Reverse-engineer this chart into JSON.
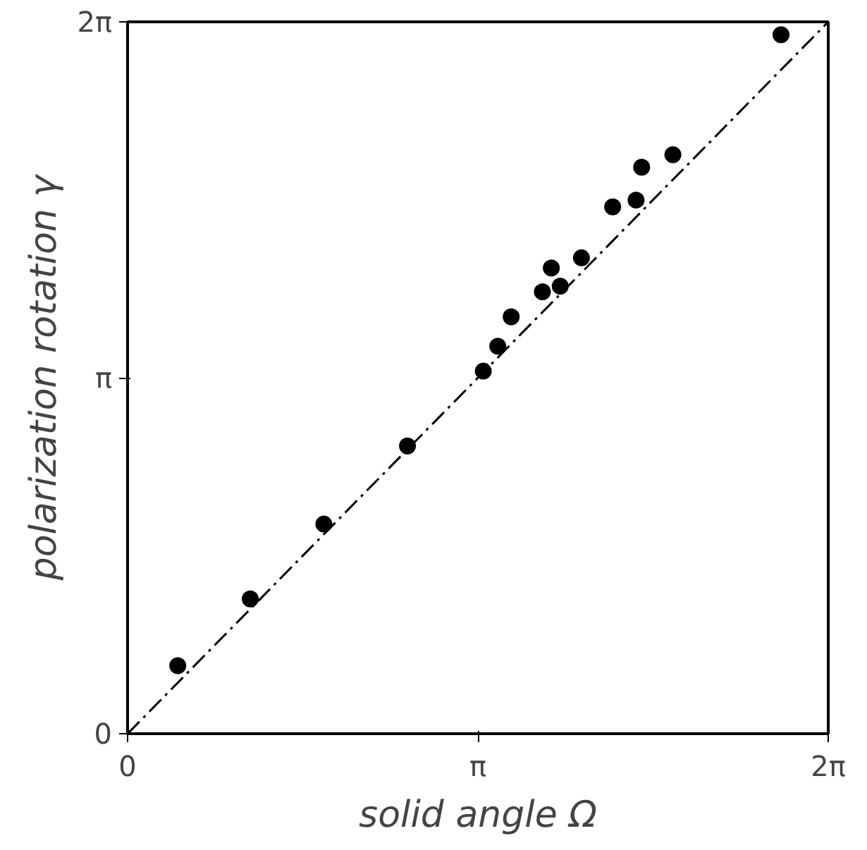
{
  "chart_data": {
    "type": "scatter",
    "xlabel": "solid angle Ω",
    "ylabel": "polarization rotation γ",
    "xlim": [
      0,
      6.2832
    ],
    "ylim": [
      0,
      6.2832
    ],
    "xticks": [
      0,
      {
        "value": 3.1416,
        "label": "π"
      },
      {
        "value": 6.2832,
        "label": "2π"
      }
    ],
    "yticks": [
      0,
      {
        "value": 3.1416,
        "label": "π"
      },
      {
        "value": 6.2832,
        "label": "2π"
      }
    ],
    "grid": false,
    "marker": "circle",
    "series": [
      {
        "color": "#000000",
        "x": [
          0.45,
          1.1,
          1.76,
          2.51,
          3.19,
          3.32,
          3.44,
          3.72,
          3.8,
          3.88,
          4.07,
          4.35,
          4.56,
          4.61,
          4.89,
          5.86
        ],
        "values": [
          0.6,
          1.19,
          1.85,
          2.54,
          3.2,
          3.42,
          3.68,
          3.9,
          4.11,
          3.95,
          4.2,
          4.65,
          4.71,
          5.0,
          5.11,
          6.17
        ]
      },
      {
        "type": "line",
        "color": "#000000",
        "line_style": "dashed",
        "marker": "none",
        "x": [
          0,
          6.2832
        ],
        "values": [
          0,
          6.2832
        ]
      }
    ]
  }
}
